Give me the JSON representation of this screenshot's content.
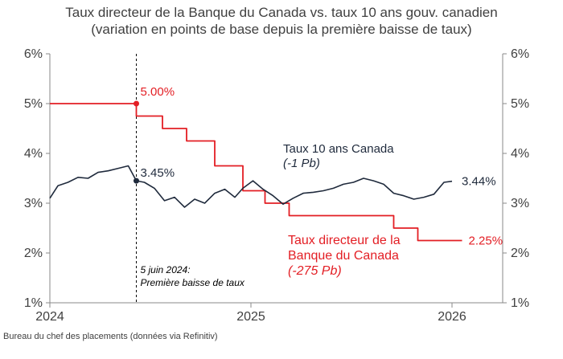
{
  "chart_data": {
    "type": "line",
    "title": "Taux directeur de la Banque du Canada vs. taux 10 ans gouv. canadien",
    "subtitle": "(variation en points de base depuis la première baisse de taux)",
    "y_ticks": [
      "6%",
      "5%",
      "4%",
      "3%",
      "2%",
      "1%"
    ],
    "y_tick_values": [
      6,
      5,
      4,
      3,
      2,
      1
    ],
    "ylim": [
      1,
      6
    ],
    "x_ticks": [
      "2024",
      "2025",
      "2026"
    ],
    "x_tick_values": [
      2024.0,
      2025.0,
      2026.0
    ],
    "xlim": [
      2024.0,
      2026.25
    ],
    "grid": false,
    "colors": {
      "policy": "#e31e24",
      "yield": "#1f2a3c",
      "axis": "#888888",
      "text": "#404040"
    },
    "series": [
      {
        "name": "Taux directeur de la Banque du Canada",
        "color": "#e31e24",
        "step": true,
        "x": [
          2024.0,
          2024.43,
          2024.43,
          2024.56,
          2024.56,
          2024.68,
          2024.68,
          2024.82,
          2024.82,
          2024.96,
          2024.96,
          2025.07,
          2025.07,
          2025.19,
          2025.19,
          2025.71,
          2025.71,
          2025.83,
          2025.83,
          2026.05
        ],
        "y": [
          5.0,
          5.0,
          4.75,
          4.75,
          4.5,
          4.5,
          4.25,
          4.25,
          3.75,
          3.75,
          3.25,
          3.25,
          3.0,
          3.0,
          2.75,
          2.75,
          2.5,
          2.5,
          2.25,
          2.25
        ]
      },
      {
        "name": "Taux 10 ans Canada",
        "color": "#1f2a3c",
        "x": [
          2024.0,
          2024.04,
          2024.09,
          2024.14,
          2024.19,
          2024.24,
          2024.29,
          2024.34,
          2024.39,
          2024.43,
          2024.47,
          2024.52,
          2024.57,
          2024.62,
          2024.67,
          2024.72,
          2024.77,
          2024.82,
          2024.87,
          2024.92,
          2024.96,
          2025.01,
          2025.06,
          2025.11,
          2025.16,
          2025.21,
          2025.26,
          2025.31,
          2025.36,
          2025.41,
          2025.46,
          2025.51,
          2025.56,
          2025.61,
          2025.66,
          2025.71,
          2025.76,
          2025.81,
          2025.86,
          2025.91,
          2025.96,
          2026.0
        ],
        "y": [
          3.1,
          3.35,
          3.42,
          3.52,
          3.5,
          3.62,
          3.65,
          3.7,
          3.75,
          3.45,
          3.42,
          3.3,
          3.05,
          3.12,
          2.92,
          3.08,
          3.0,
          3.2,
          3.28,
          3.12,
          3.3,
          3.45,
          3.28,
          3.15,
          2.98,
          3.1,
          3.2,
          3.22,
          3.25,
          3.3,
          3.38,
          3.42,
          3.5,
          3.45,
          3.38,
          3.2,
          3.15,
          3.08,
          3.12,
          3.18,
          3.42,
          3.44
        ]
      }
    ],
    "annotations": {
      "policy_start": "5.00%",
      "yield_start": "3.45%",
      "yield_end": "3.44%",
      "policy_end": "2.25%",
      "yield_label_line1": "Taux 10 ans Canada",
      "yield_label_line2": "(-1 Pb)",
      "policy_label_line1": "Taux directeur de la",
      "policy_label_line2": "Banque du Canada",
      "policy_label_line3": "(-275 Pb)",
      "vline_x": 2024.43,
      "vline_label_line1": "5 juin 2024:",
      "vline_label_line2": "Première baisse de taux"
    }
  },
  "footer": {
    "source": "Bureau du chef des placements (données via Refinitiv)"
  }
}
